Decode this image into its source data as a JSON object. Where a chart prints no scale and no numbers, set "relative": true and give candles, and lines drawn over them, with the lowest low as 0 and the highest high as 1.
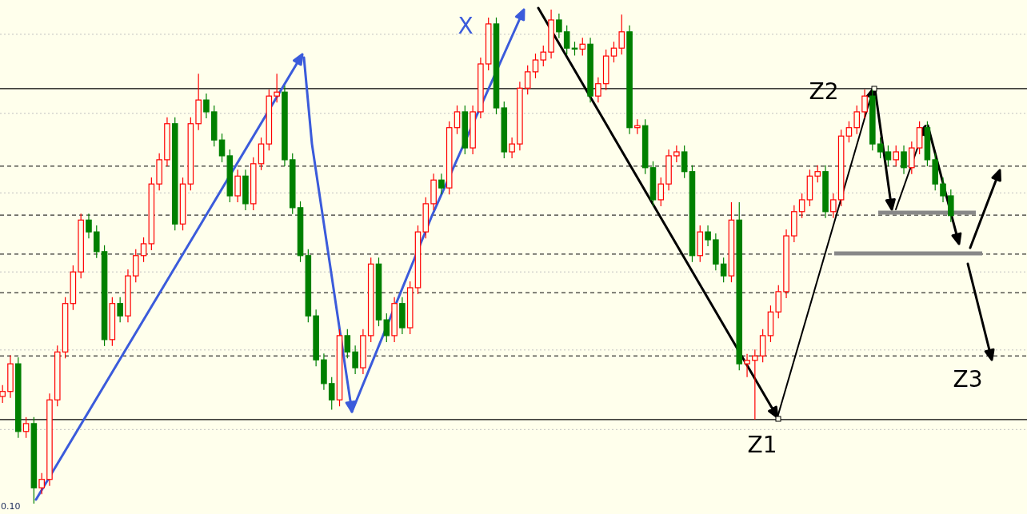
{
  "chart_data": {
    "type": "candlestick",
    "relative": true,
    "categories": [
      null,
      null,
      null,
      null,
      null,
      null,
      null,
      null,
      null,
      null,
      null,
      null,
      null,
      null,
      null,
      null,
      null,
      null,
      null,
      null,
      null,
      null,
      null,
      null,
      null,
      null,
      null,
      null,
      null,
      null,
      null,
      null,
      null,
      null,
      null,
      null,
      null,
      null,
      null,
      null,
      null,
      null,
      null,
      null,
      null,
      null,
      null,
      null,
      null,
      null,
      null,
      null,
      null,
      null,
      null,
      null,
      null,
      null,
      null,
      null,
      null,
      null,
      null,
      null,
      null,
      null,
      null,
      null,
      null,
      null,
      null,
      null,
      null,
      null,
      null,
      null,
      null,
      null,
      null,
      null,
      null,
      null,
      null,
      null,
      null,
      null,
      null,
      null,
      null,
      null,
      null,
      null,
      null,
      null,
      null,
      null,
      null,
      null,
      null,
      null,
      null,
      null,
      null,
      null,
      null,
      null,
      null,
      null,
      null,
      null,
      null,
      null,
      null,
      null,
      null,
      null,
      null,
      null,
      null,
      null,
      null,
      null
    ],
    "ohlc": [
      [
        0.217,
        0.24,
        0.204,
        0.227
      ],
      [
        0.227,
        0.3,
        0.214,
        0.283
      ],
      [
        0.283,
        0.296,
        0.133,
        0.146
      ],
      [
        0.146,
        0.175,
        0.133,
        0.162
      ],
      [
        0.162,
        0.175,
        0,
        0.032
      ],
      [
        0.032,
        0.062,
        0.019,
        0.049
      ],
      [
        0.049,
        0.223,
        0.036,
        0.21
      ],
      [
        0.21,
        0.32,
        0.197,
        0.307
      ],
      [
        0.307,
        0.418,
        0.294,
        0.405
      ],
      [
        0.405,
        0.482,
        0.392,
        0.469
      ],
      [
        0.469,
        0.587,
        0.456,
        0.574
      ],
      [
        0.574,
        0.587,
        0.537,
        0.55
      ],
      [
        0.55,
        0.563,
        0.497,
        0.51
      ],
      [
        0.51,
        0.523,
        0.319,
        0.332
      ],
      [
        0.332,
        0.418,
        0.319,
        0.405
      ],
      [
        0.405,
        0.418,
        0.367,
        0.38
      ],
      [
        0.38,
        0.474,
        0.367,
        0.461
      ],
      [
        0.461,
        0.515,
        0.448,
        0.502
      ],
      [
        0.502,
        0.539,
        0.489,
        0.526
      ],
      [
        0.526,
        0.66,
        0.513,
        0.647
      ],
      [
        0.647,
        0.709,
        0.634,
        0.696
      ],
      [
        0.696,
        0.782,
        0.683,
        0.769
      ],
      [
        0.769,
        0.782,
        0.553,
        0.566
      ],
      [
        0.566,
        0.66,
        0.553,
        0.647
      ],
      [
        0.647,
        0.782,
        0.634,
        0.769
      ],
      [
        0.769,
        0.87,
        0.756,
        0.817
      ],
      [
        0.817,
        0.83,
        0.78,
        0.793
      ],
      [
        0.793,
        0.806,
        0.723,
        0.736
      ],
      [
        0.736,
        0.749,
        0.691,
        0.704
      ],
      [
        0.704,
        0.717,
        0.61,
        0.623
      ],
      [
        0.623,
        0.676,
        0.61,
        0.663
      ],
      [
        0.663,
        0.676,
        0.594,
        0.607
      ],
      [
        0.607,
        0.701,
        0.594,
        0.688
      ],
      [
        0.688,
        0.741,
        0.675,
        0.728
      ],
      [
        0.728,
        0.838,
        0.715,
        0.825
      ],
      [
        0.825,
        0.87,
        0.812,
        0.833
      ],
      [
        0.833,
        0.846,
        0.683,
        0.696
      ],
      [
        0.696,
        0.709,
        0.586,
        0.599
      ],
      [
        0.599,
        0.612,
        0.489,
        0.502
      ],
      [
        0.502,
        0.515,
        0.367,
        0.38
      ],
      [
        0.38,
        0.393,
        0.278,
        0.291
      ],
      [
        0.291,
        0.304,
        0.23,
        0.243
      ],
      [
        0.243,
        0.256,
        0.19,
        0.21
      ],
      [
        0.21,
        0.353,
        0.197,
        0.34
      ],
      [
        0.34,
        0.353,
        0.294,
        0.307
      ],
      [
        0.307,
        0.32,
        0.262,
        0.275
      ],
      [
        0.275,
        0.353,
        0.262,
        0.34
      ],
      [
        0.34,
        0.498,
        0.327,
        0.485
      ],
      [
        0.485,
        0.498,
        0.359,
        0.372
      ],
      [
        0.372,
        0.385,
        0.327,
        0.34
      ],
      [
        0.34,
        0.418,
        0.327,
        0.405
      ],
      [
        0.405,
        0.418,
        0.343,
        0.356
      ],
      [
        0.356,
        0.45,
        0.343,
        0.437
      ],
      [
        0.437,
        0.563,
        0.424,
        0.55
      ],
      [
        0.55,
        0.62,
        0.537,
        0.607
      ],
      [
        0.607,
        0.668,
        0.594,
        0.655
      ],
      [
        0.655,
        0.668,
        0.626,
        0.639
      ],
      [
        0.639,
        0.774,
        0.626,
        0.761
      ],
      [
        0.761,
        0.806,
        0.748,
        0.793
      ],
      [
        0.793,
        0.806,
        0.707,
        0.72
      ],
      [
        0.72,
        0.806,
        0.707,
        0.793
      ],
      [
        0.793,
        0.903,
        0.78,
        0.89
      ],
      [
        0.89,
        0.984,
        0.877,
        0.971
      ],
      [
        0.971,
        0.984,
        0.788,
        0.801
      ],
      [
        0.801,
        0.814,
        0.699,
        0.712
      ],
      [
        0.712,
        0.741,
        0.699,
        0.728
      ],
      [
        0.728,
        0.854,
        0.715,
        0.841
      ],
      [
        0.841,
        0.887,
        0.828,
        0.874
      ],
      [
        0.874,
        0.911,
        0.861,
        0.898
      ],
      [
        0.898,
        0.927,
        0.885,
        0.914
      ],
      [
        0.914,
        1,
        0.901,
        0.979
      ],
      [
        0.979,
        0.992,
        0.942,
        0.955
      ],
      [
        0.955,
        0.968,
        0.909,
        0.922
      ],
      [
        0.922,
        0.935,
        0.907,
        0.92
      ],
      [
        0.92,
        0.943,
        0.907,
        0.93
      ],
      [
        0.93,
        0.943,
        0.812,
        0.825
      ],
      [
        0.825,
        0.863,
        0.812,
        0.85
      ],
      [
        0.85,
        0.919,
        0.837,
        0.906
      ],
      [
        0.906,
        0.935,
        0.893,
        0.922
      ],
      [
        0.922,
        0.99,
        0.909,
        0.955
      ],
      [
        0.955,
        0.968,
        0.748,
        0.761
      ],
      [
        0.761,
        0.778,
        0.748,
        0.765
      ],
      [
        0.765,
        0.778,
        0.667,
        0.68
      ],
      [
        0.68,
        0.693,
        0.602,
        0.615
      ],
      [
        0.615,
        0.66,
        0.602,
        0.647
      ],
      [
        0.647,
        0.717,
        0.634,
        0.704
      ],
      [
        0.704,
        0.725,
        0.691,
        0.712
      ],
      [
        0.712,
        0.725,
        0.659,
        0.672
      ],
      [
        0.672,
        0.685,
        0.489,
        0.502
      ],
      [
        0.502,
        0.563,
        0.489,
        0.55
      ],
      [
        0.55,
        0.563,
        0.521,
        0.534
      ],
      [
        0.534,
        0.547,
        0.472,
        0.485
      ],
      [
        0.485,
        0.498,
        0.448,
        0.461
      ],
      [
        0.461,
        0.61,
        0.448,
        0.574
      ],
      [
        0.574,
        0.61,
        0.27,
        0.283
      ],
      [
        0.283,
        0.303,
        0.256,
        0.29
      ],
      [
        0.29,
        0.312,
        0.17,
        0.299
      ],
      [
        0.299,
        0.353,
        0.286,
        0.34
      ],
      [
        0.34,
        0.401,
        0.327,
        0.388
      ],
      [
        0.388,
        0.442,
        0.375,
        0.429
      ],
      [
        0.429,
        0.555,
        0.416,
        0.542
      ],
      [
        0.542,
        0.604,
        0.529,
        0.591
      ],
      [
        0.591,
        0.628,
        0.578,
        0.615
      ],
      [
        0.615,
        0.676,
        0.602,
        0.663
      ],
      [
        0.663,
        0.685,
        0.65,
        0.672
      ],
      [
        0.672,
        0.685,
        0.578,
        0.591
      ],
      [
        0.591,
        0.628,
        0.578,
        0.615
      ],
      [
        0.615,
        0.757,
        0.602,
        0.744
      ],
      [
        0.744,
        0.774,
        0.731,
        0.761
      ],
      [
        0.761,
        0.806,
        0.748,
        0.793
      ],
      [
        0.793,
        0.838,
        0.78,
        0.825
      ],
      [
        0.825,
        0.838,
        0.715,
        0.728
      ],
      [
        0.728,
        0.741,
        0.699,
        0.712
      ],
      [
        0.712,
        0.725,
        0.683,
        0.696
      ],
      [
        0.696,
        0.725,
        0.683,
        0.712
      ],
      [
        0.712,
        0.725,
        0.667,
        0.68
      ],
      [
        0.68,
        0.733,
        0.667,
        0.72
      ],
      [
        0.72,
        0.774,
        0.707,
        0.761
      ],
      [
        0.761,
        0.774,
        0.683,
        0.696
      ],
      [
        0.696,
        0.709,
        0.634,
        0.647
      ],
      [
        0.647,
        0.66,
        0.61,
        0.623
      ],
      [
        0.623,
        0.636,
        0.57,
        0.583
      ]
    ],
    "colors": [
      "#ff0000",
      "#ff0000",
      "#008000",
      "#ff0000",
      "#008000",
      "#ff0000",
      "#ff0000",
      "#ff0000",
      "#ff0000",
      "#ff0000",
      "#ff0000",
      "#008000",
      "#008000",
      "#008000",
      "#ff0000",
      "#008000",
      "#ff0000",
      "#ff0000",
      "#ff0000",
      "#ff0000",
      "#ff0000",
      "#ff0000",
      "#008000",
      "#ff0000",
      "#ff0000",
      "#ff0000",
      "#008000",
      "#008000",
      "#008000",
      "#008000",
      "#ff0000",
      "#008000",
      "#ff0000",
      "#ff0000",
      "#ff0000",
      "#ff0000",
      "#008000",
      "#008000",
      "#008000",
      "#008000",
      "#008000",
      "#008000",
      "#008000",
      "#ff0000",
      "#008000",
      "#008000",
      "#ff0000",
      "#ff0000",
      "#008000",
      "#008000",
      "#ff0000",
      "#008000",
      "#ff0000",
      "#ff0000",
      "#ff0000",
      "#ff0000",
      "#008000",
      "#ff0000",
      "#ff0000",
      "#008000",
      "#ff0000",
      "#ff0000",
      "#ff0000",
      "#008000",
      "#008000",
      "#ff0000",
      "#ff0000",
      "#ff0000",
      "#ff0000",
      "#ff0000",
      "#ff0000",
      "#008000",
      "#008000",
      "#008000",
      "#ff0000",
      "#008000",
      "#ff0000",
      "#ff0000",
      "#ff0000",
      "#ff0000",
      "#008000",
      "#ff0000",
      "#008000",
      "#008000",
      "#ff0000",
      "#ff0000",
      "#ff0000",
      "#008000",
      "#008000",
      "#ff0000",
      "#008000",
      "#008000",
      "#008000",
      "#ff0000",
      "#008000",
      "#ff0000",
      "#ff0000",
      "#ff0000",
      "#ff0000",
      "#ff0000",
      "#ff0000",
      "#ff0000",
      "#ff0000",
      "#ff0000",
      "#ff0000",
      "#008000",
      "#ff0000",
      "#ff0000",
      "#ff0000",
      "#ff0000",
      "#ff0000",
      "#008000",
      "#008000",
      "#008000",
      "#ff0000",
      "#008000",
      "#ff0000",
      "#ff0000",
      "#008000",
      "#008000",
      "#008000",
      "#008000"
    ],
    "ref_lines": [
      {
        "axis": "y",
        "value": 0.84,
        "color": "#000000",
        "line_style": "solid"
      },
      {
        "axis": "y",
        "value": 0.17,
        "color": "#000000",
        "line_style": "solid"
      },
      {
        "axis": "y",
        "value": 0.683,
        "color": "#000000",
        "line_style": "dashed"
      },
      {
        "axis": "y",
        "value": 0.584,
        "color": "#000000",
        "line_style": "dashed"
      },
      {
        "axis": "y",
        "value": 0.505,
        "color": "#000000",
        "line_style": "dashed"
      },
      {
        "axis": "y",
        "value": 0.427,
        "color": "#000000",
        "line_style": "dashed"
      },
      {
        "axis": "y",
        "value": 0.299,
        "color": "#000000",
        "line_style": "dashed"
      },
      {
        "axis": "y",
        "value": 0.95,
        "color": "#c0c0c0",
        "line_style": "dotted"
      },
      {
        "axis": "y",
        "value": 0.79,
        "color": "#c0c0c0",
        "line_style": "dotted"
      },
      {
        "axis": "y",
        "value": 0.629,
        "color": "#c0c0c0",
        "line_style": "dotted"
      },
      {
        "axis": "y",
        "value": 0.469,
        "color": "#c0c0c0",
        "line_style": "dotted"
      },
      {
        "axis": "y",
        "value": 0.311,
        "color": "#c0c0c0",
        "line_style": "dotted"
      },
      {
        "axis": "y",
        "value": 0.15,
        "color": "#c0c0c0",
        "line_style": "dotted"
      }
    ],
    "annotations": [
      "X",
      "Z1",
      "Z2",
      "Z3",
      "0.10"
    ]
  }
}
